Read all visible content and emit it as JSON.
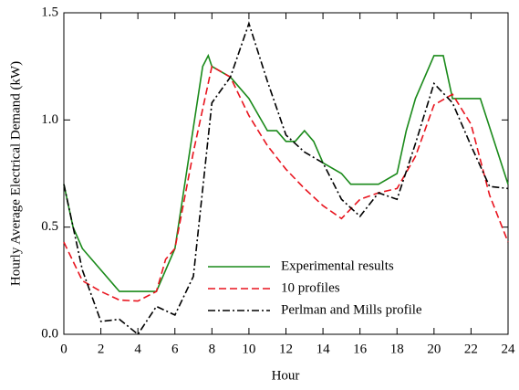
{
  "chart_data": {
    "type": "line",
    "x_label": "Hour",
    "y_label": "Hourly Average Electrical Demand (kW)",
    "xlim": [
      0,
      24
    ],
    "xticks": [
      0,
      2,
      4,
      6,
      8,
      10,
      12,
      14,
      16,
      18,
      20,
      22,
      24
    ],
    "ylim": [
      0,
      1.5
    ],
    "yticks": [
      {
        "value": 0,
        "label": "0.0"
      },
      0.5,
      {
        "value": 1,
        "label": "1.0"
      },
      1.5
    ],
    "legend": "lower right",
    "series": [
      {
        "name": "Experimental results",
        "color": "#1a8a1a",
        "style": "solid",
        "x": [
          0,
          0.5,
          1,
          3,
          5,
          6,
          7.5,
          7.8,
          8,
          9,
          10,
          11,
          11.5,
          12,
          12.5,
          13,
          13.5,
          14,
          15,
          15.5,
          17,
          18,
          18.5,
          19,
          20,
          20.5,
          21,
          22.5,
          24
        ],
        "values": [
          0.7,
          0.5,
          0.4,
          0.2,
          0.2,
          0.4,
          1.25,
          1.3,
          1.25,
          1.2,
          1.1,
          0.95,
          0.95,
          0.9,
          0.9,
          0.95,
          0.9,
          0.8,
          0.75,
          0.7,
          0.7,
          0.75,
          0.95,
          1.1,
          1.3,
          1.3,
          1.1,
          1.1,
          0.7
        ]
      },
      {
        "name": "10 profiles",
        "color": "#e8141e",
        "style": "dashed",
        "x": [
          0,
          1,
          2,
          3,
          4,
          5,
          5.5,
          6,
          7,
          8,
          9,
          10,
          11,
          12,
          13,
          14,
          15,
          16,
          17,
          18,
          19,
          20,
          21,
          22,
          23,
          24
        ],
        "values": [
          0.43,
          0.25,
          0.2,
          0.16,
          0.155,
          0.2,
          0.35,
          0.4,
          0.85,
          1.25,
          1.2,
          1.02,
          0.88,
          0.77,
          0.68,
          0.6,
          0.54,
          0.63,
          0.66,
          0.68,
          0.83,
          1.07,
          1.12,
          0.98,
          0.65,
          0.43
        ]
      },
      {
        "name": "Perlman and Mills profile",
        "color": "#000000",
        "style": "dashdot",
        "x": [
          0,
          1,
          2,
          3,
          4,
          5,
          6,
          7,
          8,
          9,
          10,
          11,
          12,
          13,
          14,
          15,
          16,
          17,
          18,
          19,
          20,
          21,
          22,
          23,
          24
        ],
        "values": [
          0.7,
          0.3,
          0.06,
          0.07,
          0.0,
          0.13,
          0.09,
          0.27,
          1.08,
          1.2,
          1.45,
          1.18,
          0.93,
          0.85,
          0.8,
          0.63,
          0.55,
          0.66,
          0.63,
          0.89,
          1.17,
          1.08,
          0.88,
          0.69,
          0.68
        ]
      }
    ]
  }
}
